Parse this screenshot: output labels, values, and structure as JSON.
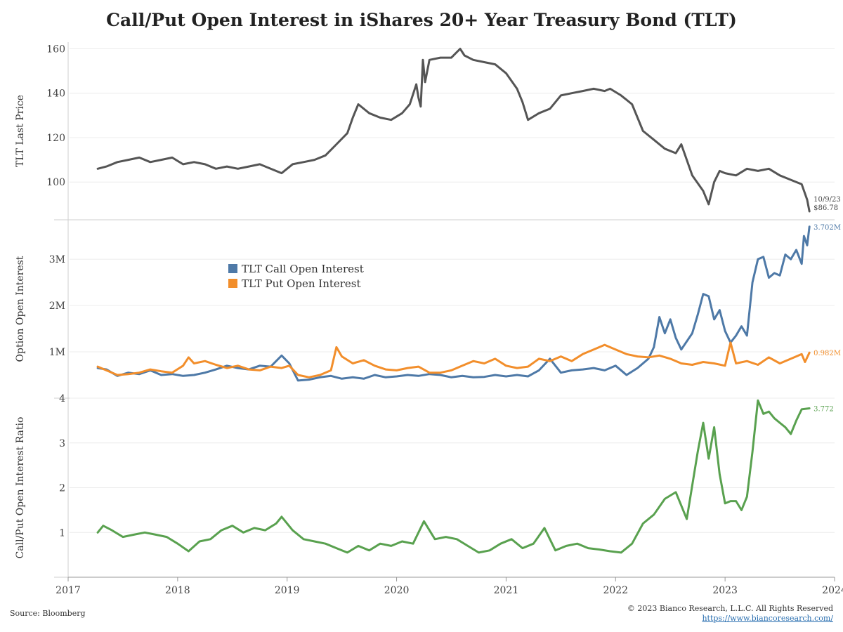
{
  "title": "Call/Put Open Interest in iShares 20+ Year Treasury Bond (TLT)",
  "source": "Source: Bloomberg",
  "copyright": "© 2023 Bianco Research, L.L.C. All Rights Reserved",
  "url": "https://www.biancoresearch.com/",
  "chart_data": [
    {
      "type": "line",
      "ylabel": "TLT Last Price",
      "ylim": [
        83,
        163
      ],
      "yticks": [
        100,
        120,
        140,
        160
      ],
      "ytick_labels": [
        "100",
        "120",
        "140",
        "160"
      ],
      "grid": true,
      "annotation": {
        "date_label": "10/9/23",
        "value_label": "$86.78"
      },
      "series": [
        {
          "color": "#555555",
          "x": [
            2017.27,
            2017.35,
            2017.45,
            2017.55,
            2017.65,
            2017.75,
            2017.85,
            2017.95,
            2018.05,
            2018.15,
            2018.25,
            2018.35,
            2018.45,
            2018.55,
            2018.65,
            2018.75,
            2018.85,
            2018.95,
            2019.05,
            2019.15,
            2019.25,
            2019.35,
            2019.45,
            2019.55,
            2019.6,
            2019.65,
            2019.75,
            2019.85,
            2019.95,
            2020.05,
            2020.12,
            2020.18,
            2020.2,
            2020.22,
            2020.24,
            2020.26,
            2020.3,
            2020.4,
            2020.5,
            2020.58,
            2020.62,
            2020.7,
            2020.8,
            2020.9,
            2021.0,
            2021.1,
            2021.15,
            2021.2,
            2021.3,
            2021.4,
            2021.5,
            2021.6,
            2021.7,
            2021.8,
            2021.9,
            2021.95,
            2022.05,
            2022.15,
            2022.25,
            2022.35,
            2022.45,
            2022.55,
            2022.6,
            2022.7,
            2022.8,
            2022.85,
            2022.9,
            2022.95,
            2023.0,
            2023.1,
            2023.2,
            2023.3,
            2023.4,
            2023.5,
            2023.6,
            2023.7,
            2023.75,
            2023.77
          ],
          "y": [
            106,
            107,
            109,
            110,
            111,
            109,
            110,
            111,
            108,
            109,
            108,
            106,
            107,
            106,
            107,
            108,
            106,
            104,
            108,
            109,
            110,
            112,
            117,
            122,
            129,
            135,
            131,
            129,
            128,
            131,
            135,
            144,
            138,
            134,
            155,
            145,
            155,
            156,
            156,
            160,
            157,
            155,
            154,
            153,
            149,
            142,
            136,
            128,
            131,
            133,
            139,
            140,
            141,
            142,
            141,
            142,
            139,
            135,
            123,
            119,
            115,
            113,
            117,
            103,
            96,
            90,
            100,
            105,
            104,
            103,
            106,
            105,
            106,
            103,
            101,
            99,
            92,
            86.78
          ]
        }
      ]
    },
    {
      "type": "line",
      "ylabel": "Option Open Interest",
      "ylim": [
        0,
        3.85
      ],
      "yticks": [
        1,
        2,
        3
      ],
      "ytick_labels": [
        "1M",
        "2M",
        "3M"
      ],
      "grid": true,
      "legend": "upper-left",
      "series": [
        {
          "name": "TLT Call Open Interest",
          "color": "#4e79a7",
          "end_label": "3.702M",
          "x": [
            2017.27,
            2017.35,
            2017.45,
            2017.55,
            2017.65,
            2017.75,
            2017.85,
            2017.95,
            2018.05,
            2018.15,
            2018.25,
            2018.35,
            2018.45,
            2018.55,
            2018.65,
            2018.75,
            2018.85,
            2018.95,
            2019.02,
            2019.1,
            2019.2,
            2019.3,
            2019.4,
            2019.5,
            2019.6,
            2019.7,
            2019.8,
            2019.9,
            2020.0,
            2020.1,
            2020.2,
            2020.3,
            2020.4,
            2020.5,
            2020.6,
            2020.7,
            2020.8,
            2020.9,
            2021.0,
            2021.1,
            2021.2,
            2021.3,
            2021.4,
            2021.5,
            2021.6,
            2021.7,
            2021.8,
            2021.9,
            2022.0,
            2022.1,
            2022.2,
            2022.3,
            2022.35,
            2022.4,
            2022.45,
            2022.5,
            2022.55,
            2022.6,
            2022.7,
            2022.75,
            2022.8,
            2022.85,
            2022.9,
            2022.95,
            2023.0,
            2023.05,
            2023.1,
            2023.15,
            2023.2,
            2023.25,
            2023.3,
            2023.35,
            2023.4,
            2023.45,
            2023.5,
            2023.55,
            2023.6,
            2023.65,
            2023.7,
            2023.72,
            2023.75,
            2023.77
          ],
          "y": [
            0.65,
            0.62,
            0.48,
            0.55,
            0.52,
            0.6,
            0.5,
            0.52,
            0.48,
            0.5,
            0.55,
            0.62,
            0.7,
            0.65,
            0.62,
            0.7,
            0.68,
            0.92,
            0.75,
            0.38,
            0.4,
            0.45,
            0.48,
            0.42,
            0.45,
            0.42,
            0.5,
            0.45,
            0.47,
            0.5,
            0.48,
            0.52,
            0.5,
            0.45,
            0.48,
            0.45,
            0.46,
            0.5,
            0.47,
            0.5,
            0.47,
            0.6,
            0.85,
            0.55,
            0.6,
            0.62,
            0.65,
            0.6,
            0.7,
            0.5,
            0.65,
            0.85,
            1.1,
            1.75,
            1.4,
            1.7,
            1.3,
            1.05,
            1.4,
            1.8,
            2.25,
            2.2,
            1.7,
            1.9,
            1.45,
            1.2,
            1.35,
            1.55,
            1.35,
            2.5,
            3.0,
            3.05,
            2.6,
            2.7,
            2.65,
            3.1,
            3.0,
            3.2,
            2.9,
            3.5,
            3.3,
            3.702
          ]
        },
        {
          "name": "TLT Put Open Interest",
          "color": "#f28e2b",
          "end_label": "0.982M",
          "x": [
            2017.27,
            2017.35,
            2017.45,
            2017.55,
            2017.65,
            2017.75,
            2017.85,
            2017.95,
            2018.05,
            2018.1,
            2018.15,
            2018.25,
            2018.35,
            2018.45,
            2018.55,
            2018.65,
            2018.75,
            2018.85,
            2018.95,
            2019.02,
            2019.1,
            2019.2,
            2019.3,
            2019.4,
            2019.45,
            2019.5,
            2019.6,
            2019.7,
            2019.8,
            2019.9,
            2020.0,
            2020.1,
            2020.2,
            2020.3,
            2020.4,
            2020.5,
            2020.6,
            2020.7,
            2020.8,
            2020.9,
            2021.0,
            2021.1,
            2021.2,
            2021.3,
            2021.4,
            2021.5,
            2021.6,
            2021.7,
            2021.8,
            2021.9,
            2022.0,
            2022.1,
            2022.2,
            2022.3,
            2022.4,
            2022.5,
            2022.6,
            2022.7,
            2022.8,
            2022.9,
            2023.0,
            2023.05,
            2023.1,
            2023.2,
            2023.3,
            2023.4,
            2023.5,
            2023.6,
            2023.7,
            2023.73,
            2023.77
          ],
          "y": [
            0.68,
            0.6,
            0.5,
            0.52,
            0.55,
            0.62,
            0.58,
            0.55,
            0.7,
            0.88,
            0.75,
            0.8,
            0.72,
            0.65,
            0.7,
            0.62,
            0.6,
            0.68,
            0.65,
            0.7,
            0.5,
            0.45,
            0.5,
            0.6,
            1.1,
            0.9,
            0.75,
            0.82,
            0.7,
            0.62,
            0.6,
            0.65,
            0.68,
            0.55,
            0.55,
            0.6,
            0.7,
            0.8,
            0.75,
            0.85,
            0.7,
            0.65,
            0.68,
            0.85,
            0.8,
            0.9,
            0.8,
            0.95,
            1.05,
            1.15,
            1.05,
            0.95,
            0.9,
            0.88,
            0.92,
            0.85,
            0.75,
            0.72,
            0.78,
            0.75,
            0.7,
            1.2,
            0.75,
            0.8,
            0.72,
            0.88,
            0.75,
            0.85,
            0.95,
            0.78,
            0.982
          ]
        }
      ]
    },
    {
      "type": "line",
      "ylabel": "Call/Put Open Interest Ratio",
      "ylim": [
        0,
        4
      ],
      "yticks": [
        1,
        2,
        3,
        4
      ],
      "ytick_labels": [
        "1",
        "2",
        "3",
        "4"
      ],
      "grid": true,
      "xlim": [
        2017,
        2024
      ],
      "xticks": [
        2017,
        2018,
        2019,
        2020,
        2021,
        2022,
        2023,
        2024
      ],
      "xtick_labels": [
        "2017",
        "2018",
        "2019",
        "2020",
        "2021",
        "2022",
        "2023",
        "2024"
      ],
      "series": [
        {
          "color": "#59a14f",
          "end_label": "3.772",
          "x": [
            2017.27,
            2017.32,
            2017.4,
            2017.5,
            2017.6,
            2017.7,
            2017.8,
            2017.9,
            2018.0,
            2018.1,
            2018.2,
            2018.3,
            2018.4,
            2018.5,
            2018.6,
            2018.7,
            2018.8,
            2018.9,
            2018.95,
            2019.05,
            2019.15,
            2019.25,
            2019.35,
            2019.45,
            2019.55,
            2019.65,
            2019.75,
            2019.85,
            2019.95,
            2020.05,
            2020.15,
            2020.25,
            2020.35,
            2020.45,
            2020.55,
            2020.65,
            2020.75,
            2020.85,
            2020.95,
            2021.05,
            2021.15,
            2021.25,
            2021.35,
            2021.45,
            2021.55,
            2021.65,
            2021.75,
            2021.85,
            2021.95,
            2022.05,
            2022.15,
            2022.25,
            2022.35,
            2022.45,
            2022.55,
            2022.65,
            2022.7,
            2022.75,
            2022.8,
            2022.85,
            2022.9,
            2022.95,
            2023.0,
            2023.05,
            2023.1,
            2023.15,
            2023.2,
            2023.25,
            2023.3,
            2023.35,
            2023.4,
            2023.45,
            2023.5,
            2023.55,
            2023.6,
            2023.65,
            2023.7,
            2023.77
          ],
          "y": [
            1.0,
            1.15,
            1.05,
            0.9,
            0.95,
            1.0,
            0.95,
            0.9,
            0.75,
            0.58,
            0.8,
            0.85,
            1.05,
            1.15,
            1.0,
            1.1,
            1.05,
            1.2,
            1.35,
            1.05,
            0.85,
            0.8,
            0.75,
            0.65,
            0.55,
            0.7,
            0.6,
            0.75,
            0.7,
            0.8,
            0.75,
            1.25,
            0.85,
            0.9,
            0.85,
            0.7,
            0.55,
            0.6,
            0.75,
            0.85,
            0.65,
            0.75,
            1.1,
            0.6,
            0.7,
            0.75,
            0.65,
            0.62,
            0.58,
            0.55,
            0.75,
            1.2,
            1.4,
            1.75,
            1.9,
            1.3,
            2.05,
            2.8,
            3.45,
            2.65,
            3.35,
            2.3,
            1.65,
            1.7,
            1.7,
            1.5,
            1.8,
            2.8,
            3.95,
            3.65,
            3.7,
            3.55,
            3.45,
            3.35,
            3.2,
            3.5,
            3.75,
            3.772
          ]
        }
      ]
    }
  ]
}
